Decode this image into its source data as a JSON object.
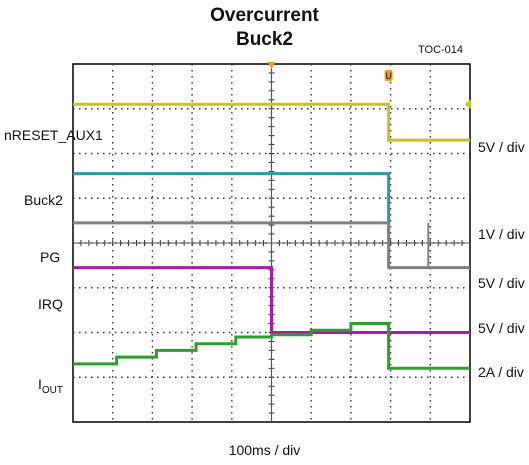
{
  "chart_data": {
    "type": "line",
    "title": "Overcurrent",
    "subtitle": "Buck2",
    "figure_id": "TOC-014",
    "xlabel": "100ms / div",
    "grid": true,
    "x_divisions": 10,
    "y_divisions": 8,
    "left_labels": {
      "nreset": "nRESET_AUX1",
      "buck2": "Buck2",
      "pg": "PG",
      "irq": "IRQ",
      "iout_main": "I",
      "iout_sub": "OUT"
    },
    "right_scales": [
      "5V / div",
      "1V / div",
      "5V / div",
      "5V / div",
      "2A / div"
    ],
    "series": [
      {
        "name": "nRESET_AUX1",
        "color": "#c8c21e",
        "x": [
          0,
          7.95,
          7.95,
          10
        ],
        "y": [
          7.1,
          7.1,
          6.3,
          6.3
        ]
      },
      {
        "name": "Buck2",
        "color": "#2a9aa8",
        "x": [
          0,
          7.95,
          7.95
        ],
        "y": [
          5.55,
          5.55,
          4.2
        ]
      },
      {
        "name": "PG",
        "color": "#808080",
        "x": [
          0,
          7.95,
          7.95,
          10
        ],
        "y": [
          4.45,
          4.45,
          3.45,
          3.45
        ]
      },
      {
        "name": "IRQ",
        "color": "#a21fa6",
        "x": [
          0,
          5.0,
          5.0,
          10
        ],
        "y": [
          3.45,
          3.45,
          2.0,
          2.0
        ]
      },
      {
        "name": "IOUT",
        "color": "#2e9e2e",
        "x": [
          0,
          1.1,
          1.1,
          2.1,
          2.1,
          3.1,
          3.1,
          4.1,
          4.1,
          5.0,
          5.0,
          6.0,
          6.0,
          7.0,
          7.0,
          7.95,
          7.95,
          10
        ],
        "y": [
          1.3,
          1.3,
          1.45,
          1.45,
          1.6,
          1.6,
          1.75,
          1.75,
          1.9,
          1.9,
          1.95,
          1.95,
          2.05,
          2.05,
          2.2,
          2.2,
          1.2,
          1.2
        ]
      }
    ],
    "markers": {
      "trigger_x": 5.0,
      "cursor_label": "U"
    }
  }
}
